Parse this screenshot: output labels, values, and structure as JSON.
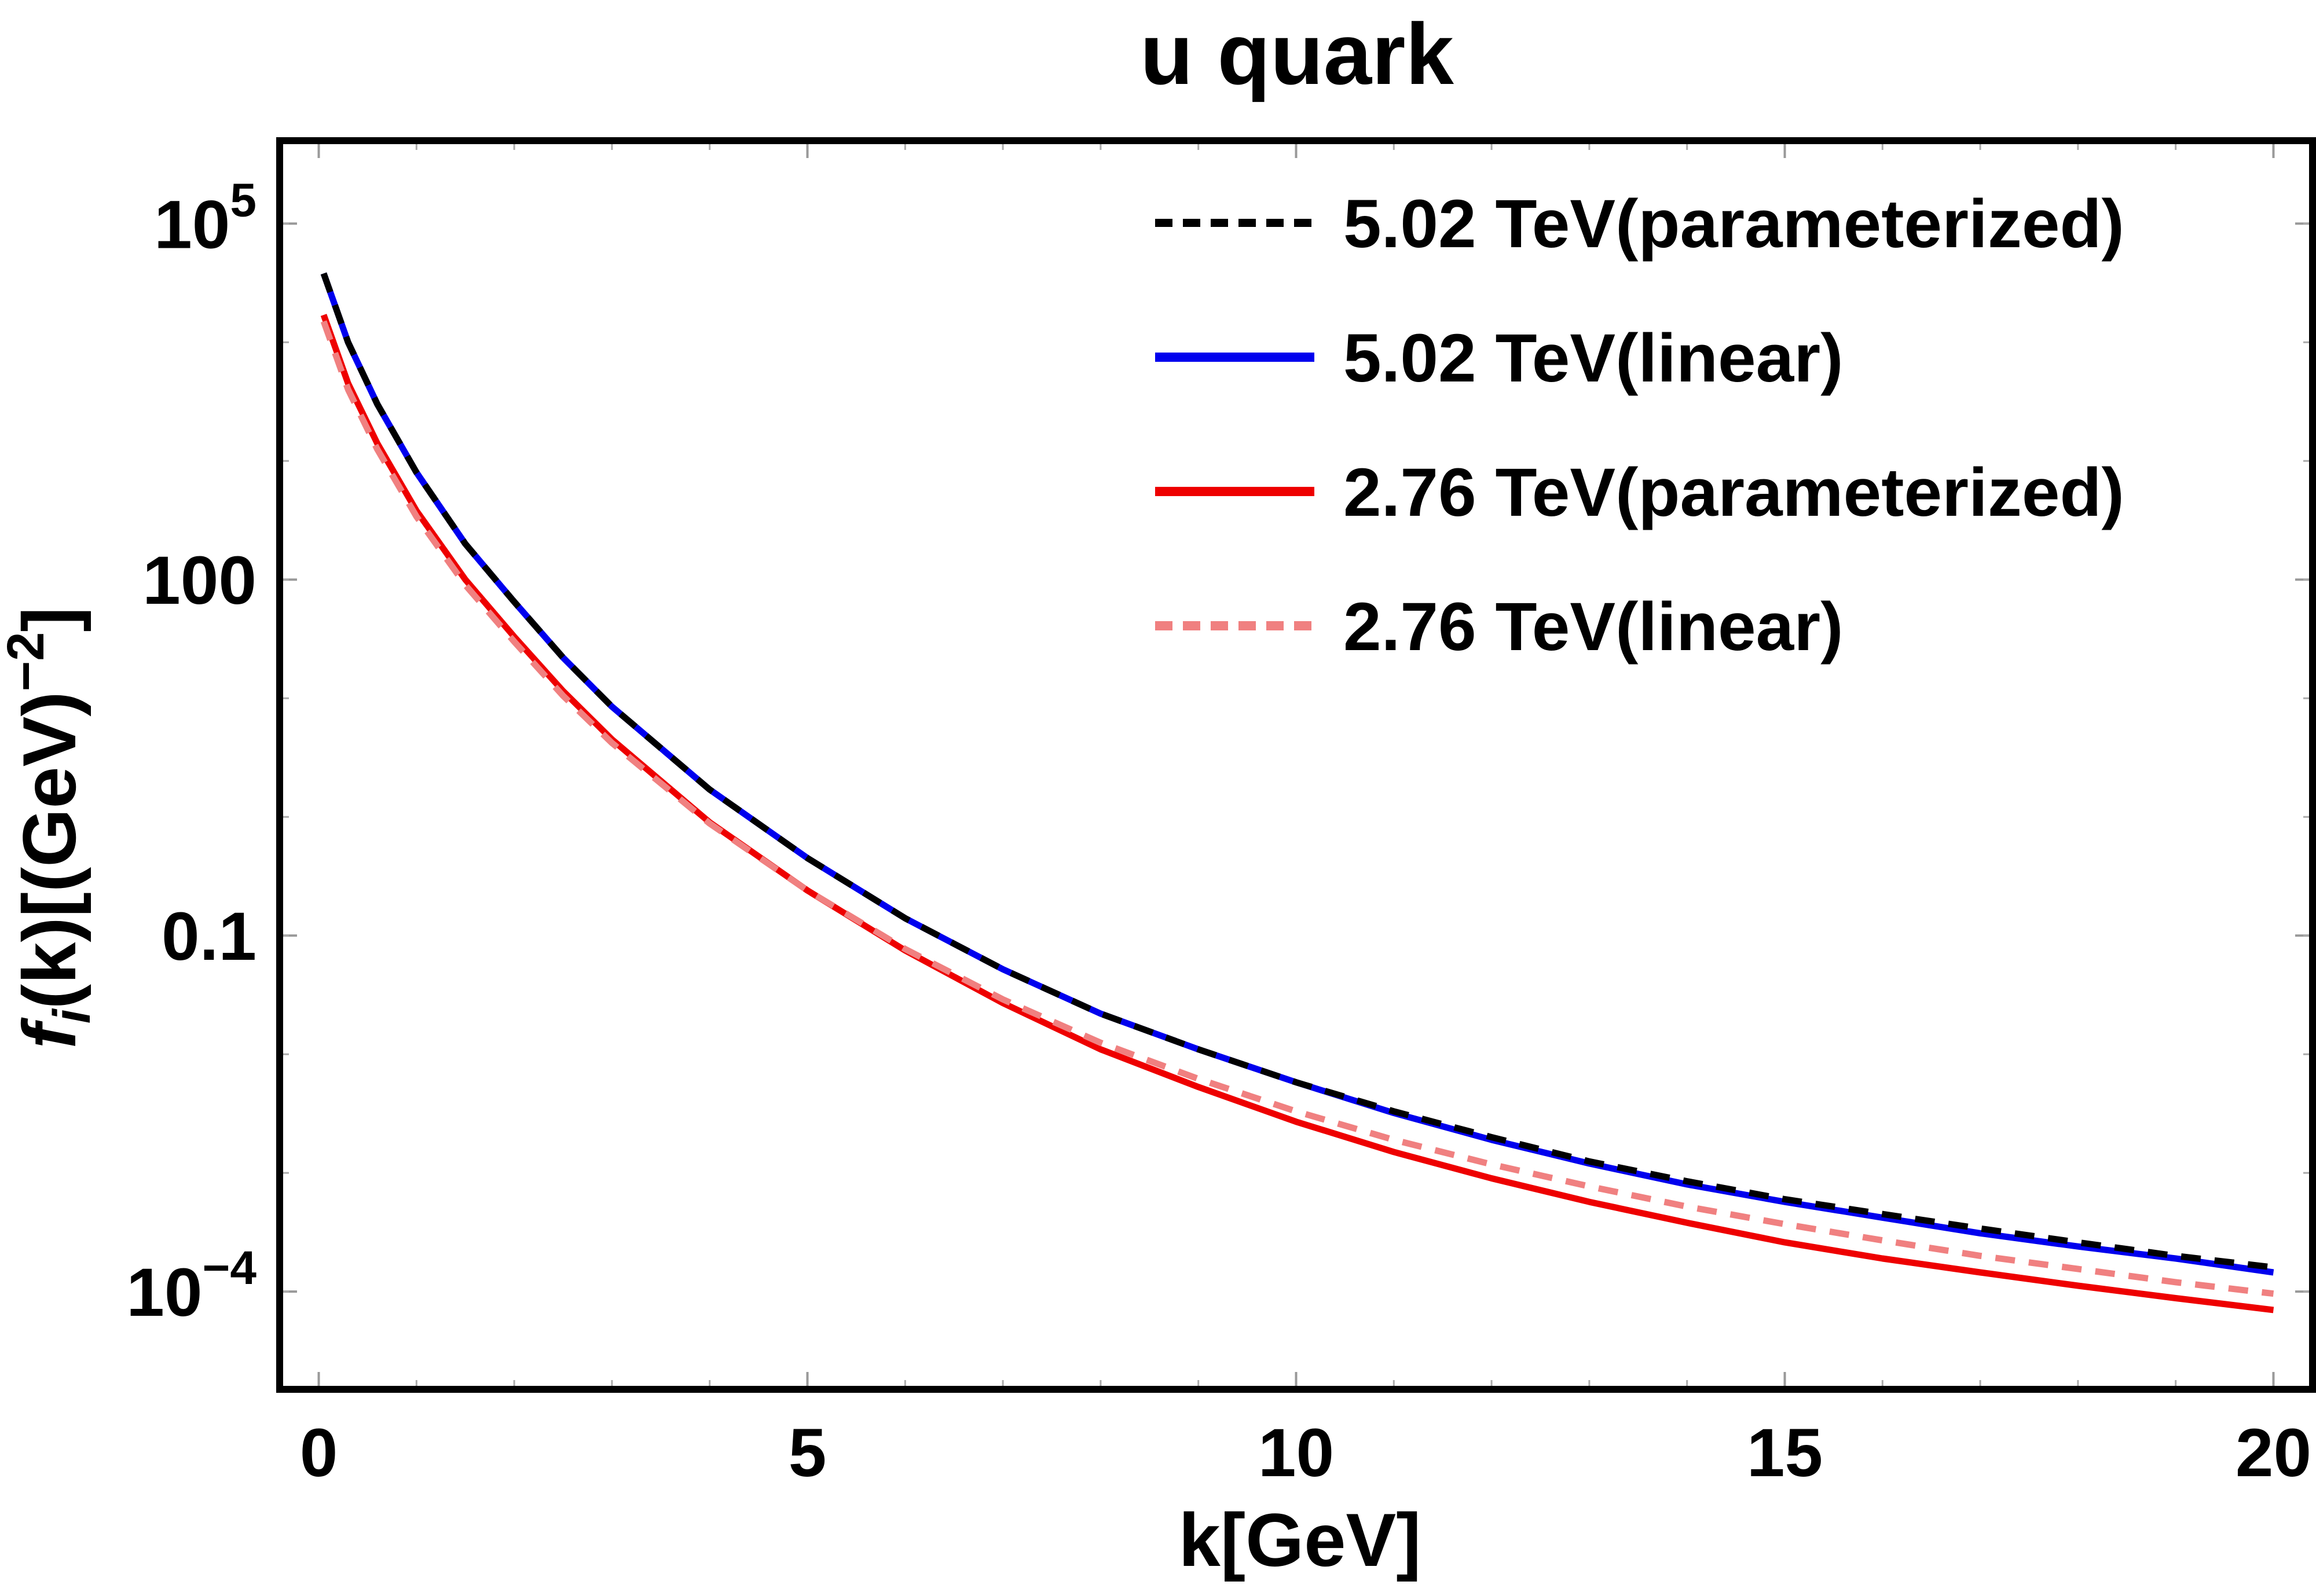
{
  "chart_data": {
    "type": "line",
    "title": "u quark",
    "xlabel": "k[GeV]",
    "ylabel": {
      "f": "f",
      "sub": "i",
      "rest": "(k)[(GeV)",
      "sup": "−2",
      "close": "]"
    },
    "x_scale": "linear",
    "y_scale": "log",
    "xlim": [
      -0.4,
      20.4
    ],
    "ylim": [
      1.5e-05,
      500000
    ],
    "x_ticks": [
      {
        "value": 0,
        "label": "0"
      },
      {
        "value": 5,
        "label": "5"
      },
      {
        "value": 10,
        "label": "10"
      },
      {
        "value": 15,
        "label": "15"
      },
      {
        "value": 20,
        "label": "20"
      }
    ],
    "y_ticks": [
      {
        "value": 0.0001,
        "base": "10",
        "exp": "−4",
        "label": ""
      },
      {
        "value": 0.1,
        "base": "",
        "exp": "",
        "label": "0.1"
      },
      {
        "value": 100,
        "base": "",
        "exp": "",
        "label": "100"
      },
      {
        "value": 100000,
        "base": "10",
        "exp": "5",
        "label": ""
      }
    ],
    "legend_position": "top-right",
    "series": [
      {
        "name": "5.02 TeV(parameterized)",
        "color": "#000000",
        "dash": "dotted-black",
        "points": [
          [
            0.05,
            38000
          ],
          [
            0.3,
            10000
          ],
          [
            0.6,
            3000
          ],
          [
            1,
            800
          ],
          [
            1.5,
            200
          ],
          [
            2,
            65
          ],
          [
            2.5,
            22
          ],
          [
            3,
            8.5
          ],
          [
            4,
            1.7
          ],
          [
            5,
            0.45
          ],
          [
            6,
            0.14
          ],
          [
            7,
            0.052
          ],
          [
            8,
            0.022
          ],
          [
            9,
            0.011
          ],
          [
            10,
            0.0058
          ],
          [
            11,
            0.0033
          ],
          [
            12,
            0.002
          ],
          [
            13,
            0.00125
          ],
          [
            14,
            0.00085
          ],
          [
            15,
            0.0006
          ],
          [
            16,
            0.00045
          ],
          [
            17,
            0.00034
          ],
          [
            18,
            0.00026
          ],
          [
            19,
            0.0002
          ],
          [
            20,
            0.00016
          ]
        ]
      },
      {
        "name": "5.02 TeV(linear)",
        "color": "#0000ee",
        "dash": "solid",
        "points": [
          [
            0.05,
            38000
          ],
          [
            0.3,
            10000
          ],
          [
            0.6,
            3000
          ],
          [
            1,
            800
          ],
          [
            1.5,
            200
          ],
          [
            2,
            65
          ],
          [
            2.5,
            22
          ],
          [
            3,
            8.5
          ],
          [
            4,
            1.7
          ],
          [
            5,
            0.45
          ],
          [
            6,
            0.14
          ],
          [
            7,
            0.052
          ],
          [
            8,
            0.022
          ],
          [
            9,
            0.011
          ],
          [
            10,
            0.0058
          ],
          [
            11,
            0.0032
          ],
          [
            12,
            0.0019
          ],
          [
            13,
            0.0012
          ],
          [
            14,
            0.0008
          ],
          [
            15,
            0.00057
          ],
          [
            16,
            0.00042
          ],
          [
            17,
            0.00031
          ],
          [
            18,
            0.00024
          ],
          [
            19,
            0.00019
          ],
          [
            20,
            0.000145
          ]
        ]
      },
      {
        "name": "2.76 TeV(parameterized)",
        "color": "#ee0000",
        "dash": "solid",
        "points": [
          [
            0.05,
            17000
          ],
          [
            0.3,
            4500
          ],
          [
            0.6,
            1400
          ],
          [
            1,
            380
          ],
          [
            1.5,
            100
          ],
          [
            2,
            33
          ],
          [
            2.5,
            11.5
          ],
          [
            3,
            4.5
          ],
          [
            4,
            0.9
          ],
          [
            5,
            0.24
          ],
          [
            6,
            0.075
          ],
          [
            7,
            0.027
          ],
          [
            8,
            0.011
          ],
          [
            9,
            0.0053
          ],
          [
            10,
            0.0027
          ],
          [
            11,
            0.0015
          ],
          [
            12,
            0.0009
          ],
          [
            13,
            0.00057
          ],
          [
            14,
            0.00038
          ],
          [
            15,
            0.00026
          ],
          [
            16,
            0.00019
          ],
          [
            17,
            0.000145
          ],
          [
            18,
            0.000112
          ],
          [
            19,
            8.8e-05
          ],
          [
            20,
            7e-05
          ]
        ]
      },
      {
        "name": "2.76 TeV(linear)",
        "color": "#f08080",
        "dash": "dotted-red",
        "points": [
          [
            0.05,
            15000
          ],
          [
            0.3,
            4000
          ],
          [
            0.6,
            1250
          ],
          [
            1,
            340
          ],
          [
            1.5,
            90
          ],
          [
            2,
            30
          ],
          [
            2.5,
            10.5
          ],
          [
            3,
            4.2
          ],
          [
            4,
            0.88
          ],
          [
            5,
            0.24
          ],
          [
            6,
            0.077
          ],
          [
            7,
            0.029
          ],
          [
            8,
            0.0125
          ],
          [
            9,
            0.0062
          ],
          [
            10,
            0.0033
          ],
          [
            11,
            0.0019
          ],
          [
            12,
            0.00118
          ],
          [
            13,
            0.00077
          ],
          [
            14,
            0.00052
          ],
          [
            15,
            0.00037
          ],
          [
            16,
            0.00027
          ],
          [
            17,
            0.0002
          ],
          [
            18,
            0.000155
          ],
          [
            19,
            0.00012
          ],
          [
            20,
            9.6e-05
          ]
        ]
      }
    ]
  }
}
